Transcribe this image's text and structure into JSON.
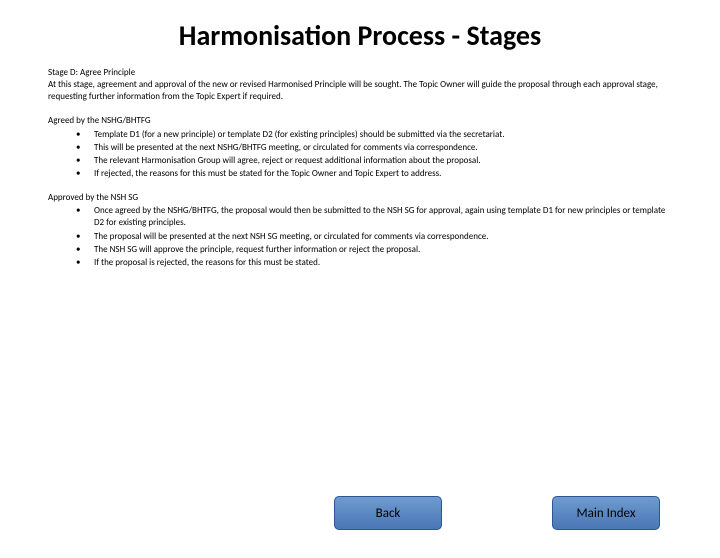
{
  "title": "Harmonisation Process - Stages",
  "intro": {
    "heading": "Stage D: Agree Principle",
    "body": "At this stage, agreement and approval of the new or revised Harmonised Principle will be sought. The Topic Owner will guide the proposal through each approval stage, requesting further information from the Topic Expert if required."
  },
  "section1": {
    "heading": "Agreed by the NSHG/BHTFG",
    "items": [
      "Template D1 (for a new principle) or template D2 (for existing principles) should be submitted via the secretariat.",
      "This will be presented at the next NSHG/BHTFG meeting, or circulated for comments via correspondence.",
      "The relevant Harmonisation Group will agree, reject or request additional information about the proposal.",
      "If rejected, the reasons for this must be stated for the Topic Owner and Topic Expert to address."
    ]
  },
  "section2": {
    "heading": "Approved by the NSH SG",
    "items": [
      "Once agreed by the NSHG/BHTFG, the proposal would then be submitted to the NSH SG for approval, again using template D1 for new principles or template D2 for existing principles.",
      "The proposal will be presented at the next NSH SG meeting, or circulated for comments via correspondence.",
      "The NSH SG will approve the principle, request further information or reject the proposal.",
      "If the proposal is rejected, the reasons for this must be stated."
    ]
  },
  "buttons": {
    "back": "Back",
    "main_index": "Main Index"
  },
  "colors": {
    "button_gradient_top": "#6f9bd1",
    "button_gradient_bottom": "#4a77b4",
    "button_border": "#2f5597",
    "background": "#ffffff",
    "text": "#000000"
  }
}
